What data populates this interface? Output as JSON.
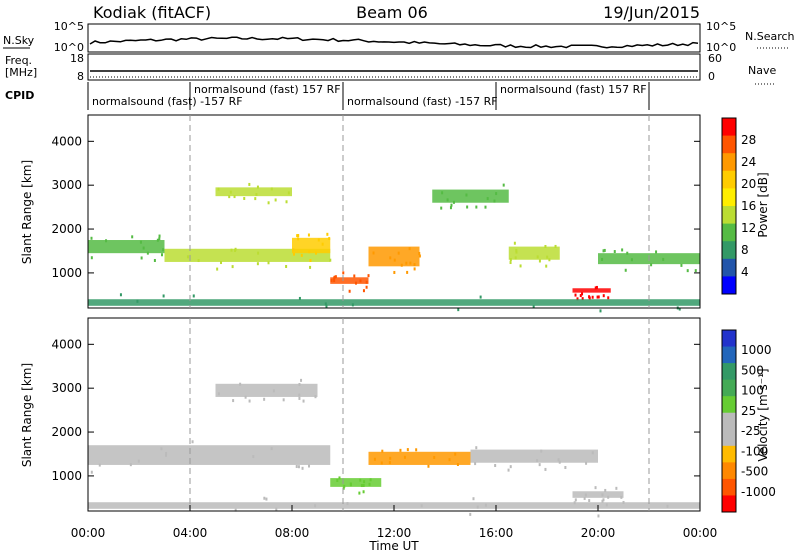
{
  "header": {
    "title": "Kodiak (fitACF)",
    "beam": "Beam 06",
    "date": "19/Jun/2015"
  },
  "sky_panel": {
    "left_label": "N.Sky",
    "right_label": "N.Search",
    "left_ticks": [
      "10^5",
      "10^0"
    ],
    "right_ticks": [
      "10^5",
      "10^0"
    ]
  },
  "freq_panel": {
    "left_label_1": "Freq.",
    "left_label_2": "[MHz]",
    "right_label": "Nave",
    "left_ticks": [
      "18",
      "8"
    ],
    "right_ticks": [
      "60",
      "0"
    ]
  },
  "cpid": {
    "label": "CPID",
    "segments": [
      {
        "text": "normalsound (fast) -157 RF",
        "start_h": 0.0,
        "end_h": 4.0,
        "row": 1
      },
      {
        "text": "normalsound (fast) 157 RF",
        "start_h": 4.0,
        "end_h": 10.0,
        "row": 0
      },
      {
        "text": "normalsound (fast) -157 RF",
        "start_h": 10.0,
        "end_h": 16.0,
        "row": 1
      },
      {
        "text": "normalsound (fast) 157 RF",
        "start_h": 16.0,
        "end_h": 22.0,
        "row": 0
      }
    ]
  },
  "power_panel": {
    "ylabel": "Slant Range [km]",
    "cbar_label": "Power [dB]",
    "cbar_ticks": [
      "28",
      "24",
      "20",
      "16",
      "12",
      "8",
      "4"
    ],
    "cbar_colors": [
      "#ff0000",
      "#ff5500",
      "#ff9900",
      "#ffcc00",
      "#ffee00",
      "#bbdd33",
      "#55bb44",
      "#339966",
      "#2255aa",
      "#0000ff"
    ]
  },
  "velocity_panel": {
    "ylabel": "Slant Range [km]",
    "cbar_label": "Velocity [m s⁻¹]",
    "cbar_ticks": [
      "1000",
      "500",
      "100",
      "25",
      "-25",
      "-100",
      "-500",
      "-1000"
    ],
    "cbar_colors": [
      "#2233cc",
      "#2266bb",
      "#339966",
      "#44aa55",
      "#66cc33",
      "#bbbbbb",
      "#bbbbbb",
      "#ffbb00",
      "#ff8800",
      "#ff5500",
      "#ff0000"
    ]
  },
  "range_ticks": [
    "4000",
    "3000",
    "2000",
    "1000"
  ],
  "time_axis": {
    "label": "Time UT",
    "ticks": [
      "00:00",
      "04:00",
      "08:00",
      "12:00",
      "16:00",
      "20:00",
      "00:00"
    ]
  },
  "chart_data": {
    "type": "heatmap",
    "title": "Kodiak (fitACF)",
    "xlabel": "Time UT",
    "ylabel": "Slant Range [km]",
    "xlim": [
      0,
      24
    ],
    "ylim": [
      200,
      4600
    ],
    "power_bands": [
      {
        "t0": 0.0,
        "t1": 3.0,
        "r0": 1450,
        "r1": 1750,
        "level": 8
      },
      {
        "t0": 3.0,
        "t1": 9.5,
        "r0": 1250,
        "r1": 1550,
        "level": 14
      },
      {
        "t0": 5.0,
        "t1": 8.0,
        "r0": 2750,
        "r1": 2950,
        "level": 12
      },
      {
        "t0": 8.0,
        "t1": 9.5,
        "r0": 1450,
        "r1": 1800,
        "level": 18
      },
      {
        "t0": 9.5,
        "t1": 11.0,
        "r0": 750,
        "r1": 900,
        "level": 26
      },
      {
        "t0": 11.0,
        "t1": 13.0,
        "r0": 1150,
        "r1": 1600,
        "level": 22
      },
      {
        "t0": 13.5,
        "t1": 16.5,
        "r0": 2600,
        "r1": 2900,
        "level": 10
      },
      {
        "t0": 16.5,
        "t1": 18.5,
        "r0": 1300,
        "r1": 1600,
        "level": 14
      },
      {
        "t0": 19.0,
        "t1": 20.5,
        "r0": 550,
        "r1": 650,
        "level": 28
      },
      {
        "t0": 20.0,
        "t1": 24.0,
        "r0": 1200,
        "r1": 1450,
        "level": 8
      },
      {
        "t0": 0.0,
        "t1": 24.0,
        "r0": 250,
        "r1": 400,
        "level": 6
      }
    ],
    "velocity_bands": [
      {
        "t0": 0.0,
        "t1": 9.5,
        "r0": 1250,
        "r1": 1700,
        "velocity": 0
      },
      {
        "t0": 5.0,
        "t1": 9.0,
        "r0": 2800,
        "r1": 3100,
        "velocity": 0
      },
      {
        "t0": 9.5,
        "t1": 11.5,
        "r0": 750,
        "r1": 950,
        "velocity": 150
      },
      {
        "t0": 11.0,
        "t1": 15.0,
        "r0": 1250,
        "r1": 1550,
        "velocity": -150
      },
      {
        "t0": 15.0,
        "t1": 20.0,
        "r0": 1300,
        "r1": 1600,
        "velocity": 0
      },
      {
        "t0": 19.0,
        "t1": 21.0,
        "r0": 500,
        "r1": 650,
        "velocity": 0
      },
      {
        "t0": 0.0,
        "t1": 24.0,
        "r0": 250,
        "r1": 400,
        "velocity": 0
      }
    ]
  }
}
